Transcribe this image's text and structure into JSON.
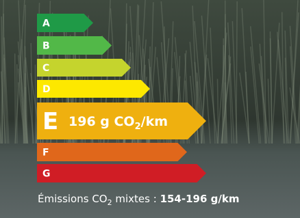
{
  "energy_label": {
    "classes": [
      "A",
      "B",
      "C",
      "D",
      "E",
      "F",
      "G"
    ],
    "colors": [
      "#1f9a47",
      "#52b848",
      "#c5d42d",
      "#fde800",
      "#efb00f",
      "#e0671b",
      "#d01d25"
    ],
    "active_value": "196 g CO",
    "active_sub": "2",
    "active_unit": "/km",
    "caption_prefix": "Émissions CO",
    "caption_sub": "2",
    "caption_mid": " mixtes : ",
    "caption_value": "154-196 g/km"
  }
}
